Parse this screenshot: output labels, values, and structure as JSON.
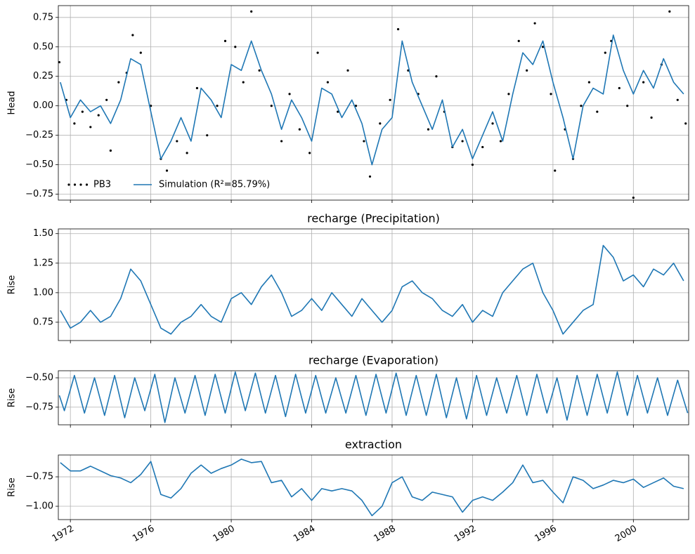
{
  "chart_data": [
    {
      "type": "line",
      "ylabel": "Head",
      "xlim": [
        1971.4,
        2002.75
      ],
      "ylim": [
        -0.8,
        0.85
      ],
      "grid": true,
      "legend": "lower left",
      "xticks": [
        1972,
        1976,
        1980,
        1984,
        1988,
        1992,
        1996,
        2000
      ],
      "yticks": [
        {
          "value": -0.75,
          "label": "−0.75"
        },
        {
          "value": -0.5,
          "label": "−0.50"
        },
        {
          "value": -0.25,
          "label": "−0.25"
        },
        {
          "value": 0,
          "label": "0.00"
        },
        0.25,
        {
          "value": 0.5,
          "label": "0.50"
        },
        0.75
      ],
      "series": [
        {
          "name": "PB3",
          "type": "scatter",
          "color": "#000000",
          "x": [
            1971.45,
            1971.8,
            1972.2,
            1972.6,
            1973.0,
            1973.4,
            1973.8,
            1974.0,
            1974.4,
            1974.8,
            1975.1,
            1975.5,
            1976.0,
            1976.5,
            1976.8,
            1977.3,
            1977.8,
            1978.3,
            1978.8,
            1979.3,
            1979.7,
            1980.2,
            1980.6,
            1981.0,
            1981.4,
            1982.0,
            1982.5,
            1982.9,
            1983.4,
            1983.9,
            1984.3,
            1984.8,
            1985.3,
            1985.8,
            1986.2,
            1986.6,
            1986.9,
            1987.4,
            1987.9,
            1988.3,
            1988.8,
            1989.3,
            1989.8,
            1990.2,
            1990.6,
            1991.0,
            1991.5,
            1992.0,
            1992.5,
            1993.0,
            1993.4,
            1993.8,
            1994.3,
            1994.7,
            1995.1,
            1995.5,
            1995.9,
            1996.1,
            1996.6,
            1997.0,
            1997.4,
            1997.8,
            1998.2,
            1998.6,
            1998.9,
            1999.3,
            1999.7,
            2000.0,
            2000.5,
            2000.9,
            2001.4,
            2001.8,
            2002.2,
            2002.6
          ],
          "values": [
            0.37,
            0.05,
            -0.15,
            -0.05,
            -0.18,
            -0.08,
            0.05,
            -0.38,
            0.2,
            0.28,
            0.6,
            0.45,
            0.0,
            -0.45,
            -0.55,
            -0.3,
            -0.4,
            0.15,
            -0.25,
            0.0,
            0.55,
            0.5,
            0.2,
            0.8,
            0.3,
            0.0,
            -0.3,
            0.1,
            -0.2,
            -0.4,
            0.45,
            0.2,
            -0.05,
            0.3,
            0.0,
            -0.3,
            -0.6,
            -0.15,
            0.05,
            0.65,
            0.3,
            0.1,
            -0.2,
            0.25,
            -0.05,
            -0.35,
            -0.3,
            -0.5,
            -0.35,
            -0.15,
            -0.3,
            0.1,
            0.55,
            0.3,
            0.7,
            0.5,
            0.1,
            -0.55,
            -0.2,
            -0.45,
            0.0,
            0.2,
            -0.05,
            0.45,
            0.55,
            0.15,
            0.0,
            -0.78,
            0.2,
            -0.1,
            0.35,
            0.8,
            0.05,
            -0.15
          ]
        },
        {
          "name": "Simulation (R²=85.79%)",
          "type": "line",
          "color": "#1f77b4",
          "x": [
            1971.5,
            1972.0,
            1972.5,
            1973.0,
            1973.5,
            1974.0,
            1974.5,
            1975.0,
            1975.5,
            1976.0,
            1976.5,
            1977.0,
            1977.5,
            1978.0,
            1978.5,
            1979.0,
            1979.5,
            1980.0,
            1980.5,
            1981.0,
            1981.5,
            1982.0,
            1982.5,
            1983.0,
            1983.5,
            1984.0,
            1984.5,
            1985.0,
            1985.5,
            1986.0,
            1986.5,
            1987.0,
            1987.5,
            1988.0,
            1988.5,
            1989.0,
            1989.5,
            1990.0,
            1990.5,
            1991.0,
            1991.5,
            1992.0,
            1992.5,
            1993.0,
            1993.5,
            1994.0,
            1994.5,
            1995.0,
            1995.5,
            1996.0,
            1996.5,
            1997.0,
            1997.5,
            1998.0,
            1998.5,
            1999.0,
            1999.5,
            2000.0,
            2000.5,
            2001.0,
            2001.5,
            2002.0,
            2002.5
          ],
          "values": [
            0.2,
            -0.1,
            0.05,
            -0.05,
            0.0,
            -0.15,
            0.05,
            0.4,
            0.35,
            -0.05,
            -0.45,
            -0.3,
            -0.1,
            -0.3,
            0.15,
            0.05,
            -0.1,
            0.35,
            0.3,
            0.55,
            0.3,
            0.1,
            -0.2,
            0.05,
            -0.1,
            -0.3,
            0.15,
            0.1,
            -0.1,
            0.05,
            -0.15,
            -0.5,
            -0.2,
            -0.1,
            0.55,
            0.2,
            0.0,
            -0.2,
            0.05,
            -0.35,
            -0.2,
            -0.45,
            -0.25,
            -0.05,
            -0.3,
            0.1,
            0.45,
            0.35,
            0.55,
            0.2,
            -0.1,
            -0.45,
            0.0,
            0.15,
            0.1,
            0.6,
            0.3,
            0.1,
            0.3,
            0.15,
            0.4,
            0.2,
            0.1
          ]
        }
      ]
    },
    {
      "type": "line",
      "title": "recharge (Precipitation)",
      "ylabel": "Rise",
      "xlim": [
        1971.4,
        2002.75
      ],
      "ylim": [
        0.595,
        1.54
      ],
      "grid": true,
      "color": "#1f77b4",
      "xticks": [
        1972,
        1976,
        1980,
        1984,
        1988,
        1992,
        1996,
        2000
      ],
      "yticks": [
        0.75,
        {
          "value": 1,
          "label": "1.00"
        },
        1.25,
        {
          "value": 1.5,
          "label": "1.50"
        }
      ],
      "x": [
        1971.5,
        1972.0,
        1972.5,
        1973.0,
        1973.5,
        1974.0,
        1974.5,
        1975.0,
        1975.5,
        1976.0,
        1976.5,
        1977.0,
        1977.5,
        1978.0,
        1978.5,
        1979.0,
        1979.5,
        1980.0,
        1980.5,
        1981.0,
        1981.5,
        1982.0,
        1982.5,
        1983.0,
        1983.5,
        1984.0,
        1984.5,
        1985.0,
        1985.5,
        1986.0,
        1986.5,
        1987.0,
        1987.5,
        1988.0,
        1988.5,
        1989.0,
        1989.5,
        1990.0,
        1990.5,
        1991.0,
        1991.5,
        1992.0,
        1992.5,
        1993.0,
        1993.5,
        1994.0,
        1994.5,
        1995.0,
        1995.5,
        1996.0,
        1996.5,
        1997.0,
        1997.5,
        1998.0,
        1998.5,
        1999.0,
        1999.5,
        2000.0,
        2000.5,
        2001.0,
        2001.5,
        2002.0,
        2002.5
      ],
      "values": [
        0.85,
        0.7,
        0.75,
        0.85,
        0.75,
        0.8,
        0.95,
        1.2,
        1.1,
        0.9,
        0.7,
        0.65,
        0.75,
        0.8,
        0.9,
        0.8,
        0.75,
        0.95,
        1.0,
        0.9,
        1.05,
        1.15,
        1.0,
        0.8,
        0.85,
        0.95,
        0.85,
        1.0,
        0.9,
        0.8,
        0.95,
        0.85,
        0.75,
        0.85,
        1.05,
        1.1,
        1.0,
        0.95,
        0.85,
        0.8,
        0.9,
        0.75,
        0.85,
        0.8,
        1.0,
        1.1,
        1.2,
        1.25,
        1.0,
        0.85,
        0.65,
        0.75,
        0.85,
        0.9,
        1.4,
        1.3,
        1.1,
        1.15,
        1.05,
        1.2,
        1.15,
        1.25,
        1.1
      ]
    },
    {
      "type": "line",
      "title": "recharge (Evaporation)",
      "ylabel": "Rise",
      "xlim": [
        1971.4,
        2002.75
      ],
      "ylim": [
        -0.9,
        -0.44
      ],
      "grid": true,
      "color": "#1f77b4",
      "xticks": [
        1972,
        1976,
        1980,
        1984,
        1988,
        1992,
        1996,
        2000
      ],
      "yticks": [
        {
          "value": -0.75,
          "label": "−0.75"
        },
        {
          "value": -0.5,
          "label": "−0.50"
        }
      ],
      "x": [
        1971.45,
        1971.7,
        1972.2,
        1972.7,
        1973.2,
        1973.7,
        1974.2,
        1974.7,
        1975.2,
        1975.7,
        1976.2,
        1976.7,
        1977.2,
        1977.7,
        1978.2,
        1978.7,
        1979.2,
        1979.7,
        1980.2,
        1980.7,
        1981.2,
        1981.7,
        1982.2,
        1982.7,
        1983.2,
        1983.7,
        1984.2,
        1984.7,
        1985.2,
        1985.7,
        1986.2,
        1986.7,
        1987.2,
        1987.7,
        1988.2,
        1988.7,
        1989.2,
        1989.7,
        1990.2,
        1990.7,
        1991.2,
        1991.7,
        1992.2,
        1992.7,
        1993.2,
        1993.7,
        1994.2,
        1994.7,
        1995.2,
        1995.7,
        1996.2,
        1996.7,
        1997.2,
        1997.7,
        1998.2,
        1998.7,
        1999.2,
        1999.7,
        2000.2,
        2000.7,
        2001.2,
        2001.7,
        2002.2,
        2002.7
      ],
      "values": [
        -0.65,
        -0.78,
        -0.48,
        -0.8,
        -0.5,
        -0.82,
        -0.48,
        -0.84,
        -0.5,
        -0.78,
        -0.47,
        -0.88,
        -0.5,
        -0.8,
        -0.48,
        -0.82,
        -0.47,
        -0.8,
        -0.45,
        -0.78,
        -0.46,
        -0.8,
        -0.48,
        -0.83,
        -0.47,
        -0.8,
        -0.48,
        -0.8,
        -0.5,
        -0.8,
        -0.48,
        -0.82,
        -0.47,
        -0.8,
        -0.46,
        -0.82,
        -0.48,
        -0.82,
        -0.47,
        -0.84,
        -0.5,
        -0.85,
        -0.48,
        -0.82,
        -0.5,
        -0.8,
        -0.48,
        -0.82,
        -0.47,
        -0.8,
        -0.5,
        -0.86,
        -0.48,
        -0.82,
        -0.47,
        -0.8,
        -0.45,
        -0.82,
        -0.48,
        -0.8,
        -0.5,
        -0.82,
        -0.52,
        -0.8
      ]
    },
    {
      "type": "line",
      "title": "extraction",
      "ylabel": "Rise",
      "xlim": [
        1971.4,
        2002.75
      ],
      "ylim": [
        -1.113,
        -0.565
      ],
      "grid": true,
      "color": "#1f77b4",
      "xticks": [
        1972,
        1976,
        1980,
        1984,
        1988,
        1992,
        1996,
        2000
      ],
      "yticks": [
        {
          "value": -1,
          "label": "−1.00"
        },
        {
          "value": -0.75,
          "label": "−0.75"
        }
      ],
      "x": [
        1971.5,
        1972.0,
        1972.5,
        1973.0,
        1973.5,
        1974.0,
        1974.5,
        1975.0,
        1975.5,
        1976.0,
        1976.5,
        1977.0,
        1977.5,
        1978.0,
        1978.5,
        1979.0,
        1979.5,
        1980.0,
        1980.5,
        1981.0,
        1981.5,
        1982.0,
        1982.5,
        1983.0,
        1983.5,
        1984.0,
        1984.5,
        1985.0,
        1985.5,
        1986.0,
        1986.5,
        1987.0,
        1987.5,
        1988.0,
        1988.5,
        1989.0,
        1989.5,
        1990.0,
        1990.5,
        1991.0,
        1991.5,
        1992.0,
        1992.5,
        1993.0,
        1993.5,
        1994.0,
        1994.5,
        1995.0,
        1995.5,
        1996.0,
        1996.5,
        1997.0,
        1997.5,
        1998.0,
        1998.5,
        1999.0,
        1999.5,
        2000.0,
        2000.5,
        2001.0,
        2001.5,
        2002.0,
        2002.5
      ],
      "values": [
        -0.63,
        -0.7,
        -0.7,
        -0.66,
        -0.7,
        -0.74,
        -0.76,
        -0.8,
        -0.73,
        -0.62,
        -0.9,
        -0.93,
        -0.85,
        -0.72,
        -0.65,
        -0.72,
        -0.68,
        -0.65,
        -0.6,
        -0.63,
        -0.62,
        -0.8,
        -0.78,
        -0.92,
        -0.85,
        -0.95,
        -0.85,
        -0.87,
        -0.85,
        -0.87,
        -0.95,
        -1.08,
        -1.0,
        -0.8,
        -0.75,
        -0.92,
        -0.95,
        -0.88,
        -0.9,
        -0.92,
        -1.05,
        -0.95,
        -0.92,
        -0.95,
        -0.88,
        -0.8,
        -0.65,
        -0.8,
        -0.78,
        -0.88,
        -0.97,
        -0.75,
        -0.78,
        -0.85,
        -0.82,
        -0.78,
        -0.8,
        -0.77,
        -0.84,
        -0.8,
        -0.76,
        -0.83,
        -0.85
      ]
    }
  ]
}
